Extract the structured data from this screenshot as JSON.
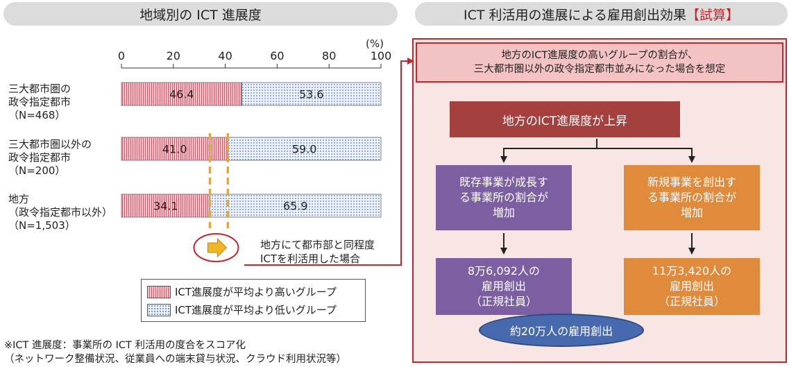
{
  "left_header": "地域別の ICT 進展度",
  "right_header": {
    "text": "ICT 利活用の進展による雇用創出効果",
    "tag": "【試算】"
  },
  "chart_data": {
    "type": "bar",
    "orientation": "horizontal",
    "stacked": true,
    "unit": "(%)",
    "xlim": [
      0,
      100
    ],
    "ticks": [
      0,
      20,
      40,
      60,
      80,
      100
    ],
    "categories": [
      [
        "三大都市圏の",
        "政令指定都市",
        "（N=468）"
      ],
      [
        "三大都市圏以外の",
        "政令指定都市",
        "（N=200）"
      ],
      [
        "地方",
        "（政令指定都市以外）",
        "（N=1,503）"
      ]
    ],
    "series": [
      {
        "name": "ICT進展度が平均より高いグループ",
        "values": [
          46.4,
          41.0,
          34.1
        ],
        "labels": [
          "46.4",
          "41.0",
          "34.1"
        ],
        "color": "#d9566a"
      },
      {
        "name": "ICT進展度が平均より低いグループ",
        "values": [
          53.6,
          59.0,
          65.9
        ],
        "labels": [
          "53.6",
          "59.0",
          "65.9"
        ],
        "color": "#5a7ec2"
      }
    ],
    "legend": "bottom",
    "annotation": [
      "地方にて都市部と同程度",
      "ICTを利活用した場合"
    ]
  },
  "flow": {
    "assumption": [
      "地方のICT進展度の高いグループの割合が、",
      "三大都市圏以外の政令指定都市並みになった場合を想定"
    ],
    "top": "地方のICT進展度が上昇",
    "left_mid": [
      "既存事業が成長す",
      "る事業所の割合が",
      "増加"
    ],
    "right_mid": [
      "新規事業を創出す",
      "る事業所の割合が",
      "増加"
    ],
    "left_result": [
      "8万6,092人の",
      "雇用創出",
      "（正規社員）"
    ],
    "right_result": [
      "11万3,420人の",
      "雇用創出",
      "（正規社員）"
    ],
    "total": "約20万人の雇用創出"
  },
  "footnote": [
    "※ICT 進展度：事業所の ICT 利活用の度合をスコア化",
    "（ネットワーク整備状況、従業員への端末貸与状況、クラウド利用状況等）"
  ]
}
